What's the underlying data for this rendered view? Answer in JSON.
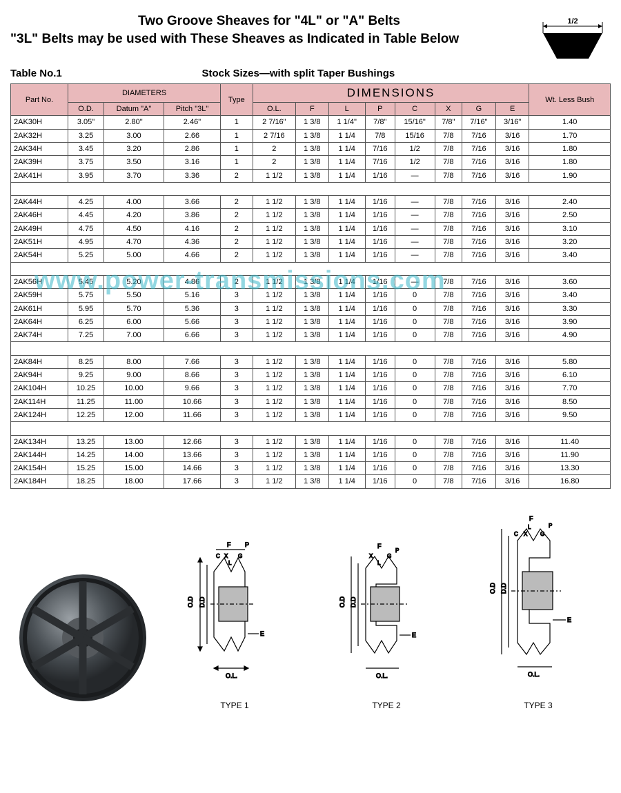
{
  "header": {
    "title1": "Two Groove Sheaves for \"4L\" or \"A\" Belts",
    "title2": "\"3L\" Belts may be used with These Sheaves as Indicated in Table Below",
    "belt_label": "1/2"
  },
  "subheader": {
    "table_no": "Table No.1",
    "stock": "Stock Sizes—with split Taper Bushings"
  },
  "watermark": "www.power-transmissions.com",
  "table": {
    "header_colors": {
      "bg": "#e9b9bb",
      "border": "#555555"
    },
    "groups": {
      "diameters": "DIAMETERS",
      "dimensions": "DIMENSIONS"
    },
    "columns": [
      "Part No.",
      "O.D.",
      "Datum \"A\"",
      "Pitch \"3L\"",
      "Type",
      "O.L.",
      "F",
      "L",
      "P",
      "C",
      "X",
      "G",
      "E",
      "Wt. Less Bush"
    ],
    "row_groups": [
      [
        [
          "2AK30H",
          "3.05\"",
          "2.80\"",
          "2.46\"",
          "1",
          "2 7/16\"",
          "1 3/8",
          "1 1/4\"",
          "7/8\"",
          "15/16\"",
          "7/8\"",
          "7/16\"",
          "3/16\"",
          "1.40"
        ],
        [
          "2AK32H",
          "3.25",
          "3.00",
          "2.66",
          "1",
          "2 7/16",
          "1 3/8",
          "1 1/4",
          "7/8",
          "15/16",
          "7/8",
          "7/16",
          "3/16",
          "1.70"
        ],
        [
          "2AK34H",
          "3.45",
          "3.20",
          "2.86",
          "1",
          "2",
          "1 3/8",
          "1 1/4",
          "7/16",
          "1/2",
          "7/8",
          "7/16",
          "3/16",
          "1.80"
        ],
        [
          "2AK39H",
          "3.75",
          "3.50",
          "3.16",
          "1",
          "2",
          "1 3/8",
          "1 1/4",
          "7/16",
          "1/2",
          "7/8",
          "7/16",
          "3/16",
          "1.80"
        ],
        [
          "2AK41H",
          "3.95",
          "3.70",
          "3.36",
          "2",
          "1 1/2",
          "1 3/8",
          "1 1/4",
          "1/16",
          "—",
          "7/8",
          "7/16",
          "3/16",
          "1.90"
        ]
      ],
      [
        [
          "2AK44H",
          "4.25",
          "4.00",
          "3.66",
          "2",
          "1 1/2",
          "1 3/8",
          "1 1/4",
          "1/16",
          "—",
          "7/8",
          "7/16",
          "3/16",
          "2.40"
        ],
        [
          "2AK46H",
          "4.45",
          "4.20",
          "3.86",
          "2",
          "1 1/2",
          "1 3/8",
          "1 1/4",
          "1/16",
          "—",
          "7/8",
          "7/16",
          "3/16",
          "2.50"
        ],
        [
          "2AK49H",
          "4.75",
          "4.50",
          "4.16",
          "2",
          "1 1/2",
          "1 3/8",
          "1 1/4",
          "1/16",
          "—",
          "7/8",
          "7/16",
          "3/16",
          "3.10"
        ],
        [
          "2AK51H",
          "4.95",
          "4.70",
          "4.36",
          "2",
          "1 1/2",
          "1 3/8",
          "1 1/4",
          "1/16",
          "—",
          "7/8",
          "7/16",
          "3/16",
          "3.20"
        ],
        [
          "2AK54H",
          "5.25",
          "5.00",
          "4.66",
          "2",
          "1 1/2",
          "1 3/8",
          "1 1/4",
          "1/16",
          "—",
          "7/8",
          "7/16",
          "3/16",
          "3.40"
        ]
      ],
      [
        [
          "2AK56H",
          "5.45",
          "5.20",
          "4.86",
          "2",
          "1 1/2",
          "1 3/8",
          "1 1/4",
          "1/16",
          "—",
          "7/8",
          "7/16",
          "3/16",
          "3.60"
        ],
        [
          "2AK59H",
          "5.75",
          "5.50",
          "5.16",
          "3",
          "1 1/2",
          "1 3/8",
          "1 1/4",
          "1/16",
          "0",
          "7/8",
          "7/16",
          "3/16",
          "3.40"
        ],
        [
          "2AK61H",
          "5.95",
          "5.70",
          "5.36",
          "3",
          "1 1/2",
          "1 3/8",
          "1 1/4",
          "1/16",
          "0",
          "7/8",
          "7/16",
          "3/16",
          "3.30"
        ],
        [
          "2AK64H",
          "6.25",
          "6.00",
          "5.66",
          "3",
          "1 1/2",
          "1 3/8",
          "1 1/4",
          "1/16",
          "0",
          "7/8",
          "7/16",
          "3/16",
          "3.90"
        ],
        [
          "2AK74H",
          "7.25",
          "7.00",
          "6.66",
          "3",
          "1 1/2",
          "1 3/8",
          "1 1/4",
          "1/16",
          "0",
          "7/8",
          "7/16",
          "3/16",
          "4.90"
        ]
      ],
      [
        [
          "2AK84H",
          "8.25",
          "8.00",
          "7.66",
          "3",
          "1 1/2",
          "1 3/8",
          "1 1/4",
          "1/16",
          "0",
          "7/8",
          "7/16",
          "3/16",
          "5.80"
        ],
        [
          "2AK94H",
          "9.25",
          "9.00",
          "8.66",
          "3",
          "1 1/2",
          "1 3/8",
          "1 1/4",
          "1/16",
          "0",
          "7/8",
          "7/16",
          "3/16",
          "6.10"
        ],
        [
          "2AK104H",
          "10.25",
          "10.00",
          "9.66",
          "3",
          "1 1/2",
          "1 3/8",
          "1 1/4",
          "1/16",
          "0",
          "7/8",
          "7/16",
          "3/16",
          "7.70"
        ],
        [
          "2AK114H",
          "11.25",
          "11.00",
          "10.66",
          "3",
          "1 1/2",
          "1 3/8",
          "1 1/4",
          "1/16",
          "0",
          "7/8",
          "7/16",
          "3/16",
          "8.50"
        ],
        [
          "2AK124H",
          "12.25",
          "12.00",
          "11.66",
          "3",
          "1 1/2",
          "1 3/8",
          "1 1/4",
          "1/16",
          "0",
          "7/8",
          "7/16",
          "3/16",
          "9.50"
        ]
      ],
      [
        [
          "2AK134H",
          "13.25",
          "13.00",
          "12.66",
          "3",
          "1 1/2",
          "1 3/8",
          "1 1/4",
          "1/16",
          "0",
          "7/8",
          "7/16",
          "3/16",
          "11.40"
        ],
        [
          "2AK144H",
          "14.25",
          "14.00",
          "13.66",
          "3",
          "1 1/2",
          "1 3/8",
          "1 1/4",
          "1/16",
          "0",
          "7/8",
          "7/16",
          "3/16",
          "11.90"
        ],
        [
          "2AK154H",
          "15.25",
          "15.00",
          "14.66",
          "3",
          "1 1/2",
          "1 3/8",
          "1 1/4",
          "1/16",
          "0",
          "7/8",
          "7/16",
          "3/16",
          "13.30"
        ],
        [
          "2AK184H",
          "18.25",
          "18.00",
          "17.66",
          "3",
          "1 1/2",
          "1 3/8",
          "1 1/4",
          "1/16",
          "0",
          "7/8",
          "7/16",
          "3/16",
          "16.80"
        ]
      ]
    ]
  },
  "diagrams": {
    "type1": "TYPE 1",
    "type2": "TYPE 2",
    "type3": "TYPE 3",
    "dim_labels": [
      "F",
      "P",
      "C",
      "X",
      "G",
      "L",
      "O.D",
      "D.D",
      "O.L.",
      "E"
    ]
  }
}
